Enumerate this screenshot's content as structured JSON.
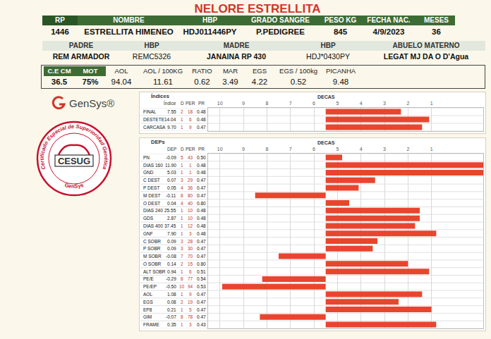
{
  "title": "NELORE ESTRELLITA",
  "animal": {
    "headers": [
      "RP",
      "NOMBRE",
      "HBP",
      "GRADO SANGRE",
      "PESO KG",
      "FECHA NAC.",
      "MESES"
    ],
    "values": [
      "1446",
      "ESTRELLITA HIMENEO",
      "HDJ011446PY",
      "P.PEDIGREE",
      "845",
      "4/9/2023",
      "36"
    ]
  },
  "pedigree": {
    "headers": [
      "PADRE",
      "HBP",
      "MADRE",
      "HBP",
      "ABUELO MATERNO"
    ],
    "values": [
      "REM ARMADOR",
      "REMC5326",
      "JANAINA RP 430",
      "HDJ*0430PY",
      "LEGAT MJ DA O D'Agua"
    ]
  },
  "measures": {
    "headers": [
      "C.E CM",
      "MOT",
      "AOL",
      "AOL / 100KG",
      "RATIO",
      "MAR",
      "EGS",
      "EGS / 100kg",
      "PICANHA"
    ],
    "values": [
      "36.5",
      "75%",
      "94.04",
      "11.61",
      "0.62",
      "3.49",
      "4.22",
      "0.52",
      "9.48"
    ]
  },
  "logos": {
    "brand": "GenSys®",
    "seal": {
      "center": "CESUG",
      "ring": "Certificado Especial de Superioridad Genética",
      "bottom": "GenSys"
    }
  },
  "chart_data": [
    {
      "type": "bar",
      "orientation": "horizontal",
      "title": "Índices",
      "axis_title": "DECAS",
      "columns": [
        "Índice",
        "D",
        "PER",
        "PR"
      ],
      "rows": [
        [
          "FINAL",
          "7.55",
          "2",
          "18",
          "0.48"
        ],
        [
          "DESTETE",
          "14.04",
          "1",
          "6",
          "0.48"
        ],
        [
          "CARCASA",
          "9.70",
          "1",
          "9",
          "0.47"
        ]
      ],
      "base": 5.5,
      "values": [
        2.3,
        1.1,
        1.4
      ],
      "xlim": [
        10.5,
        -1.2
      ],
      "xticks": [
        10,
        9,
        8,
        7,
        6,
        5,
        4,
        3,
        2,
        1
      ],
      "color": "#e8452f",
      "grid": true
    },
    {
      "type": "bar",
      "orientation": "horizontal",
      "title": "DEPs",
      "axis_title": "DECAS",
      "columns": [
        "DEP",
        "D",
        "PER",
        "PR"
      ],
      "rows": [
        [
          "PN",
          "-0.09",
          "5",
          "43",
          "0.50"
        ],
        [
          "DIAS 160",
          "11.90",
          "1",
          "1",
          "0.48"
        ],
        [
          "GND",
          "5.03",
          "1",
          "1",
          "0.48"
        ],
        [
          "C DEST",
          "0.07",
          "3",
          "29",
          "0.47"
        ],
        [
          "P DEST",
          "0.05",
          "4",
          "36",
          "0.47"
        ],
        [
          "M DEST",
          "-0.11",
          "8",
          "80",
          "0.47"
        ],
        [
          "O DEST",
          "0.04",
          "4",
          "40",
          "0.80"
        ],
        [
          "DIAS 240",
          "25.55",
          "1",
          "10",
          "0.48"
        ],
        [
          "GDS",
          "2.87",
          "1",
          "10",
          "0.48"
        ],
        [
          "DIAS 400",
          "37.45",
          "1",
          "12",
          "0.48"
        ],
        [
          "GNF",
          "7.90",
          "1",
          "3",
          "0.48"
        ],
        [
          "C SOBR",
          "0.09",
          "3",
          "28",
          "0.47"
        ],
        [
          "P SOBR",
          "0.09",
          "3",
          "30",
          "0.47"
        ],
        [
          "M SOBR",
          "-0.08",
          "7",
          "70",
          "0.47"
        ],
        [
          "O SOBR",
          "0.14",
          "2",
          "15",
          "0.80"
        ],
        [
          "ALT SOBR",
          "0.94",
          "1",
          "6",
          "0.51"
        ],
        [
          "PE/E",
          "-0.29",
          "8",
          "77",
          "0.54"
        ],
        [
          "PE/EP",
          "-0.50",
          "10",
          "94",
          "0.53"
        ],
        [
          "AOL",
          "1.08",
          "1",
          "9",
          "0.47"
        ],
        [
          "EGS",
          "0.08",
          "2",
          "19",
          "0.47"
        ],
        [
          "EP8",
          "0.21",
          "1",
          "5",
          "0.47"
        ],
        [
          "GIM",
          "-0.07",
          "8",
          "78",
          "0.47"
        ],
        [
          "FRAME",
          "0.35",
          "1",
          "3",
          "0.43"
        ]
      ],
      "base": 5.5,
      "values": [
        4.8,
        -1.2,
        -1.2,
        3.4,
        4.1,
        8.5,
        4.5,
        1.5,
        1.5,
        1.7,
        0.8,
        3.3,
        3.5,
        7.5,
        2.0,
        1.1,
        8.2,
        9.9,
        1.4,
        2.4,
        1.0,
        8.3,
        0.8
      ],
      "xlim": [
        10.5,
        -1.2
      ],
      "xticks": [
        10,
        9,
        8,
        7,
        6,
        5,
        4,
        3,
        2,
        1
      ],
      "color": "#e8452f",
      "grid": true
    }
  ]
}
